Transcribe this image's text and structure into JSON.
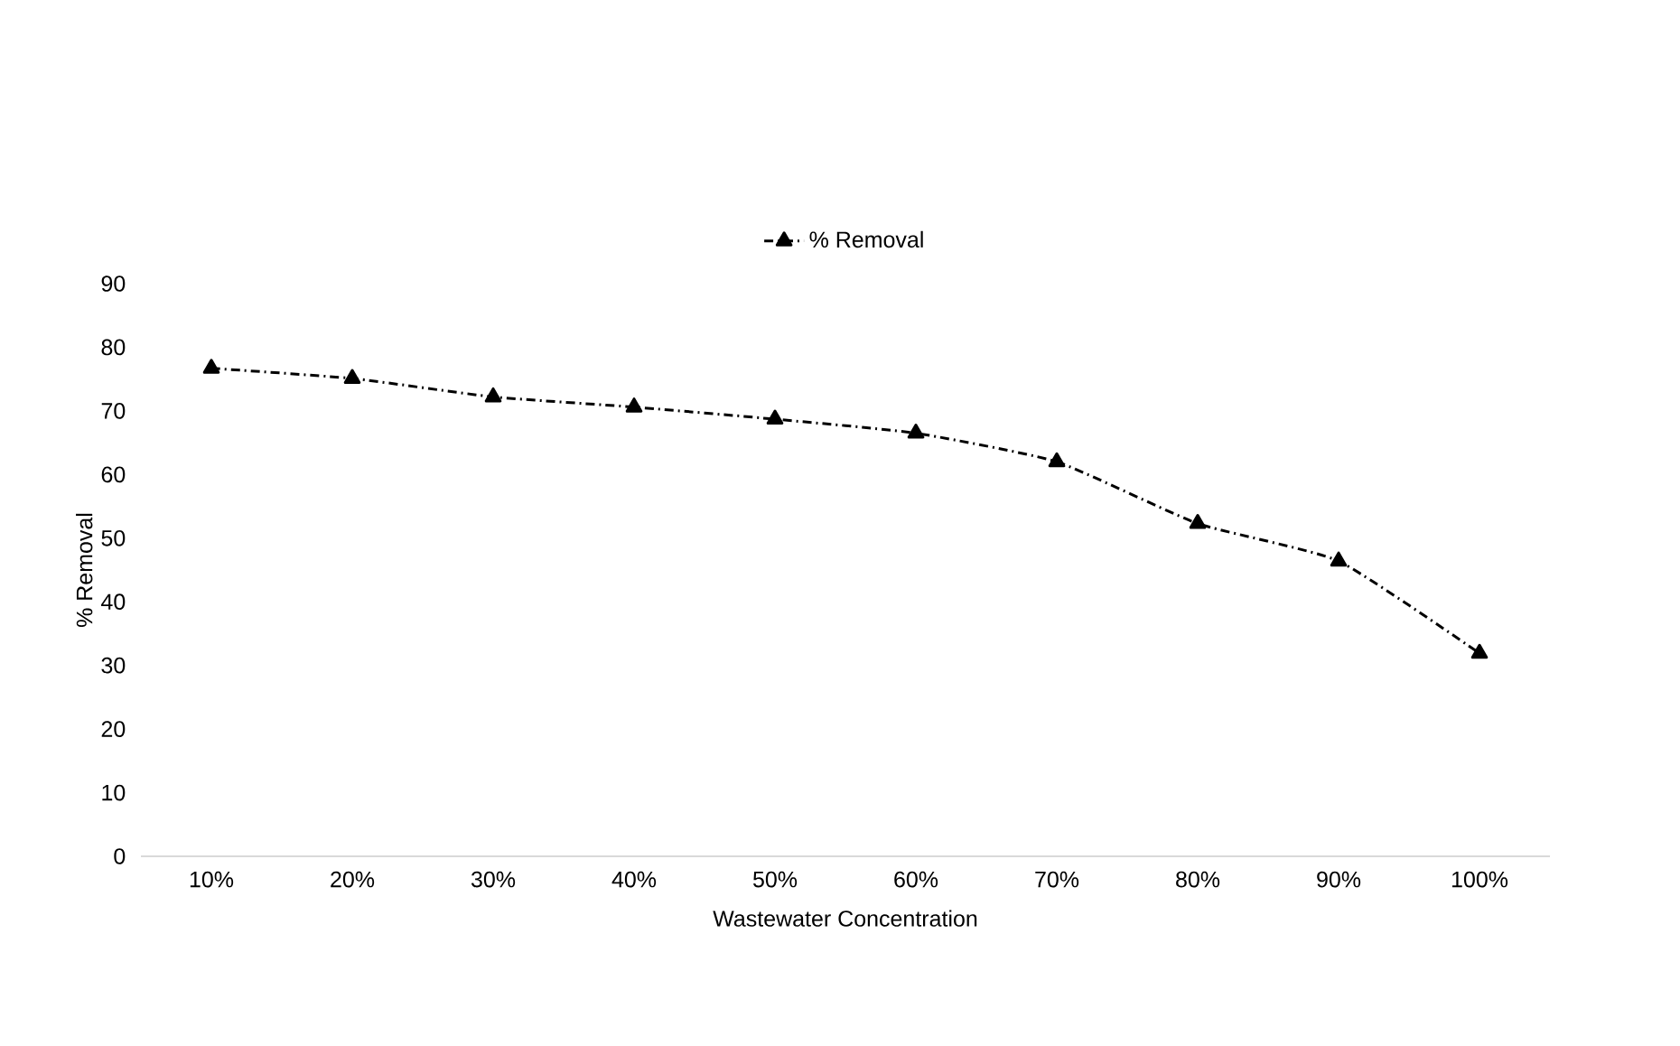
{
  "chart_data": {
    "type": "line",
    "xlabel": "Wastewater Concentration",
    "ylabel": "% Removal",
    "categories": [
      "10%",
      "20%",
      "30%",
      "40%",
      "50%",
      "60%",
      "70%",
      "80%",
      "90%",
      "100%"
    ],
    "series": [
      {
        "name": "% Removal",
        "color": "#000000",
        "values": [
          76.7,
          75.1,
          72.2,
          70.6,
          68.7,
          66.5,
          62.0,
          52.3,
          46.4,
          31.9
        ]
      }
    ],
    "ylim": [
      0,
      90
    ],
    "yticks": [
      0,
      10,
      20,
      30,
      40,
      50,
      60,
      70,
      80,
      90
    ],
    "grid": false,
    "legend": "top",
    "marker": "triangle",
    "line_style": "dashed"
  }
}
